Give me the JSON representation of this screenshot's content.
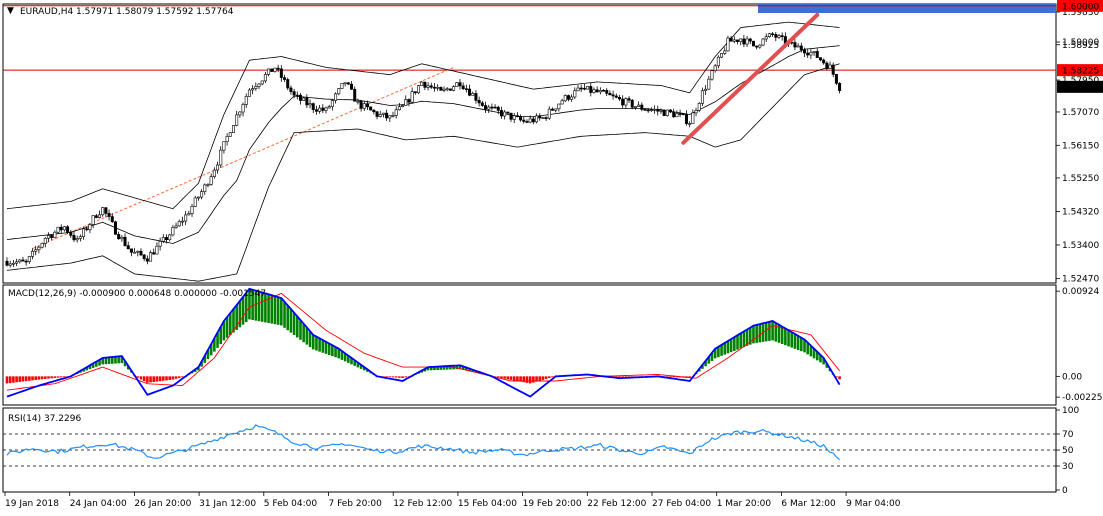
{
  "header": {
    "main": "EURAUD,H4  1.57971 1.58079 1.57592 1.57764",
    "macd": "MACD(12,26,9) -0.000900 0.000648 0.000000 -0.001547",
    "rsi": "RSI(14) 37.2296"
  },
  "colors": {
    "bull": "#008000",
    "bear": "#ff0000",
    "line": "#000000",
    "resistance": "#cc0000",
    "trendline": "#e05050",
    "trend_dashed": "#ff6a3d",
    "macd_line": "#0000ff",
    "signal_line": "#ff0000",
    "rsi_line": "#1e90ff",
    "price_label_bg": "#ff0000",
    "current_label_bg": "#000000",
    "grid_dashed": "#000000"
  },
  "price_labels": [
    {
      "text": "1.60000",
      "style": "red"
    },
    {
      "text": "1.58225",
      "style": "red"
    },
    {
      "text": "1.57764",
      "style": "black"
    }
  ],
  "chart_data": {
    "type": "candlestick",
    "symbol": "EURAUD",
    "timeframe": "H4",
    "price_axis": {
      "ylim": [
        1.5235,
        1.6005
      ],
      "ticks": [
        "1.59830",
        "1.59000",
        "1.58925",
        "1.57950",
        "1.57070",
        "1.56150",
        "1.55250",
        "1.54320",
        "1.53400",
        "1.52470"
      ],
      "tick_values": [
        1.5983,
        1.59,
        1.58925,
        1.5795,
        1.5707,
        1.5615,
        1.5525,
        1.5432,
        1.534,
        1.5247
      ]
    },
    "x_labels": [
      "19 Jan 2018",
      "24 Jan 04:00",
      "26 Jan 20:00",
      "31 Jan 12:00",
      "5 Feb 04:00",
      "7 Feb 20:00",
      "12 Feb 12:00",
      "15 Feb 04:00",
      "19 Feb 20:00",
      "22 Feb 12:00",
      "27 Feb 04:00",
      "1 Mar 20:00",
      "6 Mar 12:00",
      "9 Mar 04:00"
    ],
    "close_anchors": [
      [
        0,
        1.5295
      ],
      [
        6,
        1.529
      ],
      [
        12,
        1.536
      ],
      [
        18,
        1.539
      ],
      [
        22,
        1.535
      ],
      [
        28,
        1.5425
      ],
      [
        30,
        1.544
      ],
      [
        34,
        1.538
      ],
      [
        39,
        1.532
      ],
      [
        44,
        1.5305
      ],
      [
        50,
        1.536
      ],
      [
        56,
        1.542
      ],
      [
        62,
        1.55
      ],
      [
        66,
        1.557
      ],
      [
        70,
        1.566
      ],
      [
        76,
        1.577
      ],
      [
        84,
        1.583
      ],
      [
        90,
        1.575
      ],
      [
        96,
        1.572
      ],
      [
        100,
        1.571
      ],
      [
        106,
        1.579
      ],
      [
        110,
        1.573
      ],
      [
        116,
        1.57
      ],
      [
        120,
        1.569
      ],
      [
        124,
        1.572
      ],
      [
        130,
        1.579
      ],
      [
        136,
        1.576
      ],
      [
        142,
        1.579
      ],
      [
        150,
        1.572
      ],
      [
        156,
        1.57
      ],
      [
        162,
        1.568
      ],
      [
        168,
        1.569
      ],
      [
        174,
        1.574
      ],
      [
        180,
        1.577
      ],
      [
        186,
        1.576
      ],
      [
        192,
        1.574
      ],
      [
        198,
        1.572
      ],
      [
        204,
        1.571
      ],
      [
        210,
        1.57
      ],
      [
        214,
        1.568
      ],
      [
        218,
        1.576
      ],
      [
        222,
        1.583
      ],
      [
        226,
        1.59
      ],
      [
        230,
        1.591
      ],
      [
        234,
        1.589
      ],
      [
        240,
        1.592
      ],
      [
        246,
        1.589
      ],
      [
        250,
        1.588
      ],
      [
        254,
        1.586
      ],
      [
        258,
        1.583
      ],
      [
        261,
        1.5776
      ]
    ],
    "upper_band_anchors": [
      [
        0,
        1.544
      ],
      [
        20,
        1.546
      ],
      [
        30,
        1.5495
      ],
      [
        40,
        1.547
      ],
      [
        52,
        1.544
      ],
      [
        60,
        1.551
      ],
      [
        68,
        1.57
      ],
      [
        76,
        1.585
      ],
      [
        86,
        1.586
      ],
      [
        100,
        1.583
      ],
      [
        120,
        1.581
      ],
      [
        130,
        1.584
      ],
      [
        145,
        1.581
      ],
      [
        165,
        1.577
      ],
      [
        185,
        1.579
      ],
      [
        205,
        1.578
      ],
      [
        214,
        1.576
      ],
      [
        222,
        1.586
      ],
      [
        230,
        1.594
      ],
      [
        245,
        1.5955
      ],
      [
        261,
        1.594
      ]
    ],
    "lower_band_anchors": [
      [
        0,
        1.527
      ],
      [
        20,
        1.529
      ],
      [
        30,
        1.531
      ],
      [
        40,
        1.526
      ],
      [
        50,
        1.525
      ],
      [
        60,
        1.524
      ],
      [
        72,
        1.526
      ],
      [
        82,
        1.55
      ],
      [
        90,
        1.565
      ],
      [
        110,
        1.566
      ],
      [
        125,
        1.563
      ],
      [
        140,
        1.564
      ],
      [
        160,
        1.561
      ],
      [
        180,
        1.564
      ],
      [
        200,
        1.565
      ],
      [
        214,
        1.564
      ],
      [
        222,
        1.561
      ],
      [
        230,
        1.563
      ],
      [
        240,
        1.572
      ],
      [
        250,
        1.581
      ],
      [
        261,
        1.584
      ]
    ],
    "macd": {
      "axis_ticks": [
        "0.00924",
        "0.00",
        "-0.002255"
      ],
      "ylim": [
        -0.003,
        0.0098
      ],
      "macd_anchors": [
        [
          0,
          -0.0022
        ],
        [
          10,
          -0.001
        ],
        [
          20,
          0.0
        ],
        [
          30,
          0.002
        ],
        [
          36,
          0.0022
        ],
        [
          44,
          -0.002
        ],
        [
          52,
          -0.001
        ],
        [
          60,
          0.001
        ],
        [
          68,
          0.006
        ],
        [
          76,
          0.0095
        ],
        [
          86,
          0.0085
        ],
        [
          96,
          0.0045
        ],
        [
          104,
          0.003
        ],
        [
          116,
          0.0
        ],
        [
          124,
          -0.0005
        ],
        [
          132,
          0.001
        ],
        [
          142,
          0.0012
        ],
        [
          152,
          0.0
        ],
        [
          164,
          -0.0022
        ],
        [
          172,
          0.0
        ],
        [
          182,
          0.0002
        ],
        [
          192,
          -0.0002
        ],
        [
          204,
          0.0
        ],
        [
          214,
          -0.0005
        ],
        [
          222,
          0.003
        ],
        [
          234,
          0.0055
        ],
        [
          240,
          0.006
        ],
        [
          250,
          0.004
        ],
        [
          256,
          0.002
        ],
        [
          261,
          -0.0009
        ]
      ],
      "signal_anchors": [
        [
          0,
          -0.0015
        ],
        [
          15,
          -0.0008
        ],
        [
          30,
          0.001
        ],
        [
          44,
          -0.0008
        ],
        [
          55,
          -0.001
        ],
        [
          65,
          0.002
        ],
        [
          76,
          0.0075
        ],
        [
          86,
          0.009
        ],
        [
          100,
          0.005
        ],
        [
          112,
          0.0025
        ],
        [
          124,
          0.001
        ],
        [
          140,
          0.001
        ],
        [
          158,
          -0.0005
        ],
        [
          172,
          -0.0005
        ],
        [
          186,
          0.0
        ],
        [
          204,
          0.0002
        ],
        [
          216,
          -0.0002
        ],
        [
          226,
          0.002
        ],
        [
          240,
          0.0055
        ],
        [
          252,
          0.0045
        ],
        [
          261,
          0.0006
        ]
      ]
    },
    "rsi": {
      "axis_ticks": [
        "100",
        "70",
        "50",
        "30",
        "0"
      ],
      "levels": [
        70,
        50,
        30
      ],
      "ylim": [
        0,
        100
      ],
      "rsi_anchors": [
        [
          0,
          45
        ],
        [
          8,
          52
        ],
        [
          16,
          48
        ],
        [
          24,
          54
        ],
        [
          32,
          58
        ],
        [
          40,
          50
        ],
        [
          46,
          40
        ],
        [
          54,
          48
        ],
        [
          62,
          58
        ],
        [
          70,
          70
        ],
        [
          78,
          80
        ],
        [
          84,
          72
        ],
        [
          90,
          60
        ],
        [
          98,
          52
        ],
        [
          106,
          58
        ],
        [
          114,
          50
        ],
        [
          122,
          48
        ],
        [
          130,
          55
        ],
        [
          138,
          52
        ],
        [
          146,
          47
        ],
        [
          154,
          50
        ],
        [
          162,
          44
        ],
        [
          170,
          50
        ],
        [
          178,
          52
        ],
        [
          186,
          56
        ],
        [
          194,
          48
        ],
        [
          200,
          46
        ],
        [
          206,
          54
        ],
        [
          214,
          45
        ],
        [
          220,
          62
        ],
        [
          228,
          72
        ],
        [
          236,
          74
        ],
        [
          244,
          68
        ],
        [
          250,
          62
        ],
        [
          256,
          55
        ],
        [
          261,
          37
        ]
      ]
    },
    "annotations": {
      "resistance_levels": [
        1.6,
        1.58225
      ],
      "trendline": {
        "from": [
          212,
          1.5622
        ],
        "to": [
          254,
          1.5975
        ]
      },
      "dashed_trend": {
        "from": [
          8,
          1.533
        ],
        "to": [
          140,
          1.583
        ]
      }
    }
  }
}
